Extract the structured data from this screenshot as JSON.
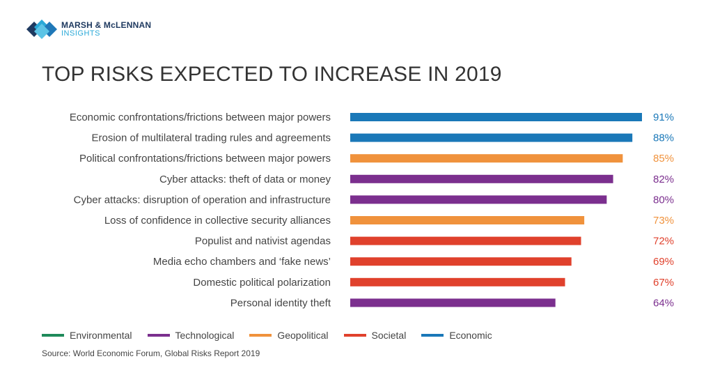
{
  "header": {
    "logo_main": "MARSH & McLENNAN",
    "logo_sub": "INSIGHTS",
    "title": "TOP RISKS EXPECTED TO INCREASE IN 2019"
  },
  "colors": {
    "Environmental": "#1f8a5a",
    "Technological": "#7b2f8e",
    "Geopolitical": "#f0923c",
    "Societal": "#e0412c",
    "Economic": "#1a78b8"
  },
  "chart_data": {
    "type": "bar",
    "orientation": "horizontal",
    "title": "TOP RISKS EXPECTED TO INCREASE IN 2019",
    "xlim": [
      0,
      91
    ],
    "categories": [
      "Economic confrontations/frictions between major powers",
      "Erosion of multilateral trading rules and agreements",
      "Political confrontations/frictions between major powers",
      "Cyber attacks: theft of data or money",
      "Cyber attacks: disruption of operation and infrastructure",
      "Loss of confidence in collective security alliances",
      "Populist and nativist agendas",
      "Media echo chambers and ‘fake news’",
      "Domestic political polarization",
      "Personal identity theft"
    ],
    "values": [
      91,
      88,
      85,
      82,
      80,
      73,
      72,
      69,
      67,
      64
    ],
    "value_labels": [
      "91%",
      "88%",
      "85%",
      "82%",
      "80%",
      "73%",
      "72%",
      "69%",
      "67%",
      "64%"
    ],
    "groups": [
      "Economic",
      "Economic",
      "Geopolitical",
      "Technological",
      "Technological",
      "Geopolitical",
      "Societal",
      "Societal",
      "Societal",
      "Technological"
    ],
    "legend": [
      "Environmental",
      "Technological",
      "Geopolitical",
      "Societal",
      "Economic"
    ],
    "legend_position": "bottom-left"
  },
  "source": "Source: World Economic Forum, Global Risks Report 2019"
}
